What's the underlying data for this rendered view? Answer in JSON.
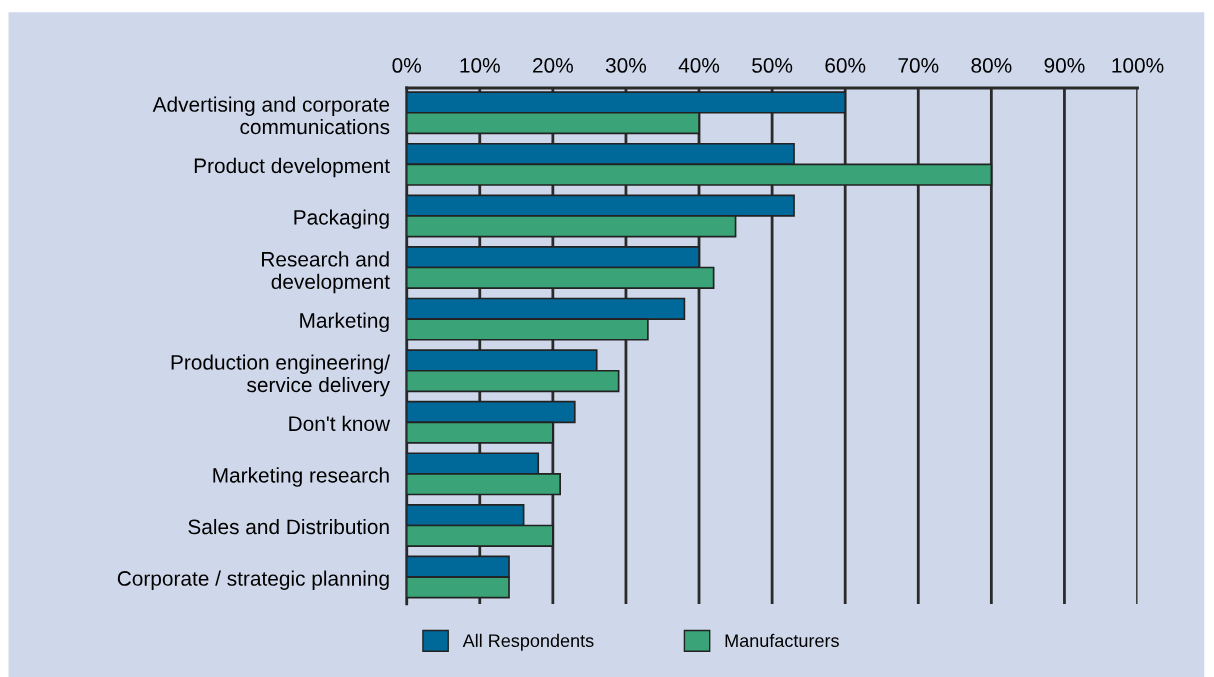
{
  "chart_data": {
    "type": "bar",
    "orientation": "horizontal",
    "categories": [
      "Advertising and corporate\ncommunications",
      "Product development",
      "Packaging",
      "Research and\ndevelopment",
      "Marketing",
      "Production engineering/\nservice delivery",
      "Don't know",
      "Marketing research",
      "Sales and Distribution",
      "Corporate / strategic planning"
    ],
    "series": [
      {
        "name": "All Respondents",
        "color": "#00699a",
        "values": [
          60,
          53,
          53,
          40,
          38,
          26,
          23,
          18,
          16,
          14
        ]
      },
      {
        "name": "Manufacturers",
        "color": "#3aa377",
        "values": [
          40,
          80,
          45,
          42,
          33,
          29,
          20,
          21,
          20,
          14
        ]
      }
    ],
    "xlim": [
      0,
      100
    ],
    "xticks": [
      {
        "value": 0,
        "label": "0%"
      },
      {
        "value": 10,
        "label": "10%"
      },
      {
        "value": 20,
        "label": "20%"
      },
      {
        "value": 30,
        "label": "30%"
      },
      {
        "value": 40,
        "label": "40%"
      },
      {
        "value": 50,
        "label": "50%"
      },
      {
        "value": 60,
        "label": "60%"
      },
      {
        "value": 70,
        "label": "70%"
      },
      {
        "value": 80,
        "label": "80%"
      },
      {
        "value": 90,
        "label": "90%"
      },
      {
        "value": 100,
        "label": "100%"
      }
    ],
    "grid": "x",
    "legend": "bottom"
  }
}
